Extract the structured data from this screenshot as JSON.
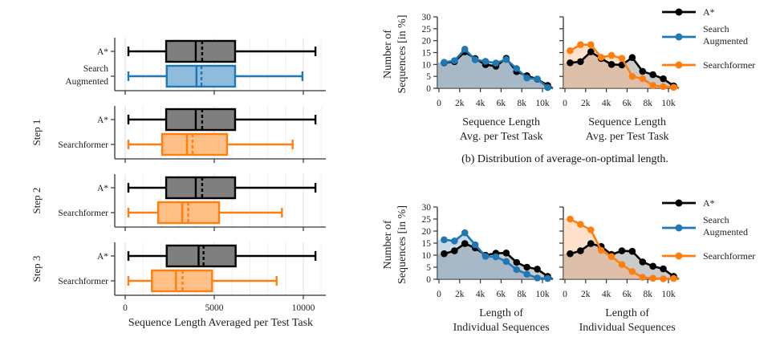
{
  "chart_data": [
    {
      "type": "boxplot",
      "orientation": "horizontal",
      "xlabel": "Sequence Length Averaged per Test Task",
      "xlim": [
        -600,
        11200
      ],
      "xticks": [
        0,
        5000,
        10000
      ],
      "xtick_labels": [
        "0",
        "5000",
        "10000"
      ],
      "grid": "vertical-minor",
      "panels": [
        {
          "label": "",
          "boxes": [
            {
              "name": "A*",
              "color": "#000000",
              "fill": "#7f7f7f",
              "min": 180,
              "q1": 2300,
              "median": 3960,
              "mean": 4320,
              "q3": 6170,
              "max": 10680
            },
            {
              "name": "Search\nAugmented",
              "label_lines": [
                "Search",
                "Augmented"
              ],
              "color": "#1f77b4",
              "fill": "#8fbbdd",
              "min": 180,
              "q1": 2330,
              "median": 4000,
              "mean": 4280,
              "q3": 6170,
              "max": 9950
            }
          ]
        },
        {
          "label": "Step 1",
          "boxes": [
            {
              "name": "A*",
              "color": "#000000",
              "fill": "#7f7f7f",
              "min": 180,
              "q1": 2300,
              "median": 3960,
              "mean": 4320,
              "q3": 6170,
              "max": 10680
            },
            {
              "name": "Searchformer",
              "color": "#ff7f0e",
              "fill": "#ffbf86",
              "min": 180,
              "q1": 2080,
              "median": 3470,
              "mean": 3780,
              "q3": 5720,
              "max": 9400
            }
          ]
        },
        {
          "label": "Step 2",
          "boxes": [
            {
              "name": "A*",
              "color": "#000000",
              "fill": "#7f7f7f",
              "min": 180,
              "q1": 2300,
              "median": 3960,
              "mean": 4320,
              "q3": 6170,
              "max": 10680
            },
            {
              "name": "Searchformer",
              "color": "#ff7f0e",
              "fill": "#ffbf86",
              "min": 180,
              "q1": 1850,
              "median": 3200,
              "mean": 3540,
              "q3": 5270,
              "max": 8800
            }
          ]
        },
        {
          "label": "Step 3",
          "boxes": [
            {
              "name": "A*",
              "color": "#000000",
              "fill": "#7f7f7f",
              "min": 180,
              "q1": 2330,
              "median": 4120,
              "mean": 4400,
              "q3": 6200,
              "max": 10680
            },
            {
              "name": "Searchformer",
              "color": "#ff7f0e",
              "fill": "#ffbf86",
              "min": 180,
              "q1": 1500,
              "median": 2850,
              "mean": 3220,
              "q3": 4880,
              "max": 8500
            }
          ]
        }
      ]
    },
    {
      "type": "area",
      "title": "",
      "ylabel_lines": [
        "Number of",
        "Sequences [in %]"
      ],
      "xlabel_lines": [
        "Sequence Length",
        "Avg. per Test Task"
      ],
      "x": [
        500,
        1500,
        2500,
        3500,
        4500,
        5500,
        6500,
        7500,
        8500,
        9500,
        10500
      ],
      "ylim": [
        0,
        30
      ],
      "yticks": [
        0,
        5,
        10,
        15,
        20,
        25,
        30
      ],
      "xticks": [
        0,
        2000,
        4000,
        6000,
        8000,
        10000
      ],
      "xtick_labels": [
        "0",
        "2k",
        "4k",
        "6k",
        "8k",
        "10k"
      ],
      "series": [
        {
          "name": "A*",
          "color": "#000000",
          "values": [
            10.7,
            11.2,
            15.3,
            12.5,
            9.9,
            9.3,
            12.6,
            7.0,
            5.3,
            3.8,
            1.2
          ]
        },
        {
          "name": "Search Augmented",
          "color": "#1f77b4",
          "values": [
            10.9,
            11.6,
            16.4,
            12.0,
            11.3,
            10.6,
            12.1,
            8.3,
            4.3,
            3.9,
            0.3
          ]
        }
      ]
    },
    {
      "type": "area",
      "title": "",
      "xlabel_lines": [
        "Sequence Length",
        "Avg. per Test Task"
      ],
      "x": [
        500,
        1500,
        2500,
        3500,
        4500,
        5500,
        6500,
        7500,
        8500,
        9500,
        10500
      ],
      "ylim": [
        0,
        30
      ],
      "yticks": [
        0,
        5,
        10,
        15,
        20,
        25,
        30
      ],
      "xticks": [
        0,
        2000,
        4000,
        6000,
        8000,
        10000
      ],
      "xtick_labels": [
        "0",
        "2k",
        "4k",
        "6k",
        "8k",
        "10k"
      ],
      "series": [
        {
          "name": "A*",
          "color": "#000000",
          "values": [
            10.7,
            11.2,
            15.3,
            12.5,
            10.0,
            9.8,
            12.9,
            7.1,
            5.7,
            4.0,
            1.0
          ]
        },
        {
          "name": "Searchformer",
          "color": "#ff7f0e",
          "values": [
            15.8,
            18.3,
            18.3,
            13.0,
            13.8,
            12.6,
            5.0,
            4.0,
            1.2,
            0.7,
            0.4
          ]
        }
      ]
    },
    {
      "type": "area",
      "title": "",
      "ylabel_lines": [
        "Number of",
        "Sequences [in %]"
      ],
      "xlabel_lines": [
        "Length of",
        "Individual Sequences"
      ],
      "x": [
        500,
        1500,
        2500,
        3500,
        4500,
        5500,
        6500,
        7500,
        8500,
        9500,
        10500
      ],
      "ylim": [
        0,
        30
      ],
      "yticks": [
        0,
        5,
        10,
        15,
        20,
        25,
        30
      ],
      "xticks": [
        0,
        2000,
        4000,
        6000,
        8000,
        10000
      ],
      "xtick_labels": [
        "0",
        "2k",
        "4k",
        "6k",
        "8k",
        "10k"
      ],
      "series": [
        {
          "name": "A*",
          "color": "#000000",
          "values": [
            10.6,
            11.8,
            14.8,
            13.0,
            10.0,
            10.8,
            10.9,
            7.0,
            5.0,
            4.2,
            1.2
          ]
        },
        {
          "name": "Search Augmented",
          "color": "#1f77b4",
          "values": [
            16.4,
            15.9,
            19.3,
            14.3,
            9.5,
            9.3,
            7.4,
            4.0,
            2.1,
            0.5,
            0.3
          ]
        }
      ]
    },
    {
      "type": "area",
      "title": "",
      "xlabel_lines": [
        "Length of",
        "Individual Sequences"
      ],
      "x": [
        500,
        1500,
        2500,
        3500,
        4500,
        5500,
        6500,
        7500,
        8500,
        9500,
        10500
      ],
      "ylim": [
        0,
        30
      ],
      "yticks": [
        0,
        5,
        10,
        15,
        20,
        25,
        30
      ],
      "xticks": [
        0,
        2000,
        4000,
        6000,
        8000,
        10000
      ],
      "xtick_labels": [
        "0",
        "2k",
        "4k",
        "6k",
        "8k",
        "10k"
      ],
      "series": [
        {
          "name": "A*",
          "color": "#000000",
          "values": [
            10.6,
            11.8,
            14.8,
            13.6,
            10.3,
            11.8,
            11.6,
            7.2,
            5.4,
            4.3,
            1.2
          ]
        },
        {
          "name": "Searchformer",
          "color": "#ff7f0e",
          "values": [
            25.0,
            22.8,
            20.5,
            12.0,
            9.4,
            6.1,
            3.2,
            0.8,
            0.4,
            0.2,
            0.3
          ]
        }
      ]
    }
  ],
  "legend": {
    "items": [
      {
        "name": "A*",
        "label_lines": [
          "A*"
        ],
        "color": "#000000"
      },
      {
        "name": "Search Augmented",
        "label_lines": [
          "Search",
          "Augmented"
        ],
        "color": "#1f77b4"
      },
      {
        "name": "Searchformer",
        "label_lines": [
          "Searchformer"
        ],
        "color": "#ff7f0e"
      }
    ]
  },
  "caption_b": "(b) Distribution of average-on-optimal length."
}
